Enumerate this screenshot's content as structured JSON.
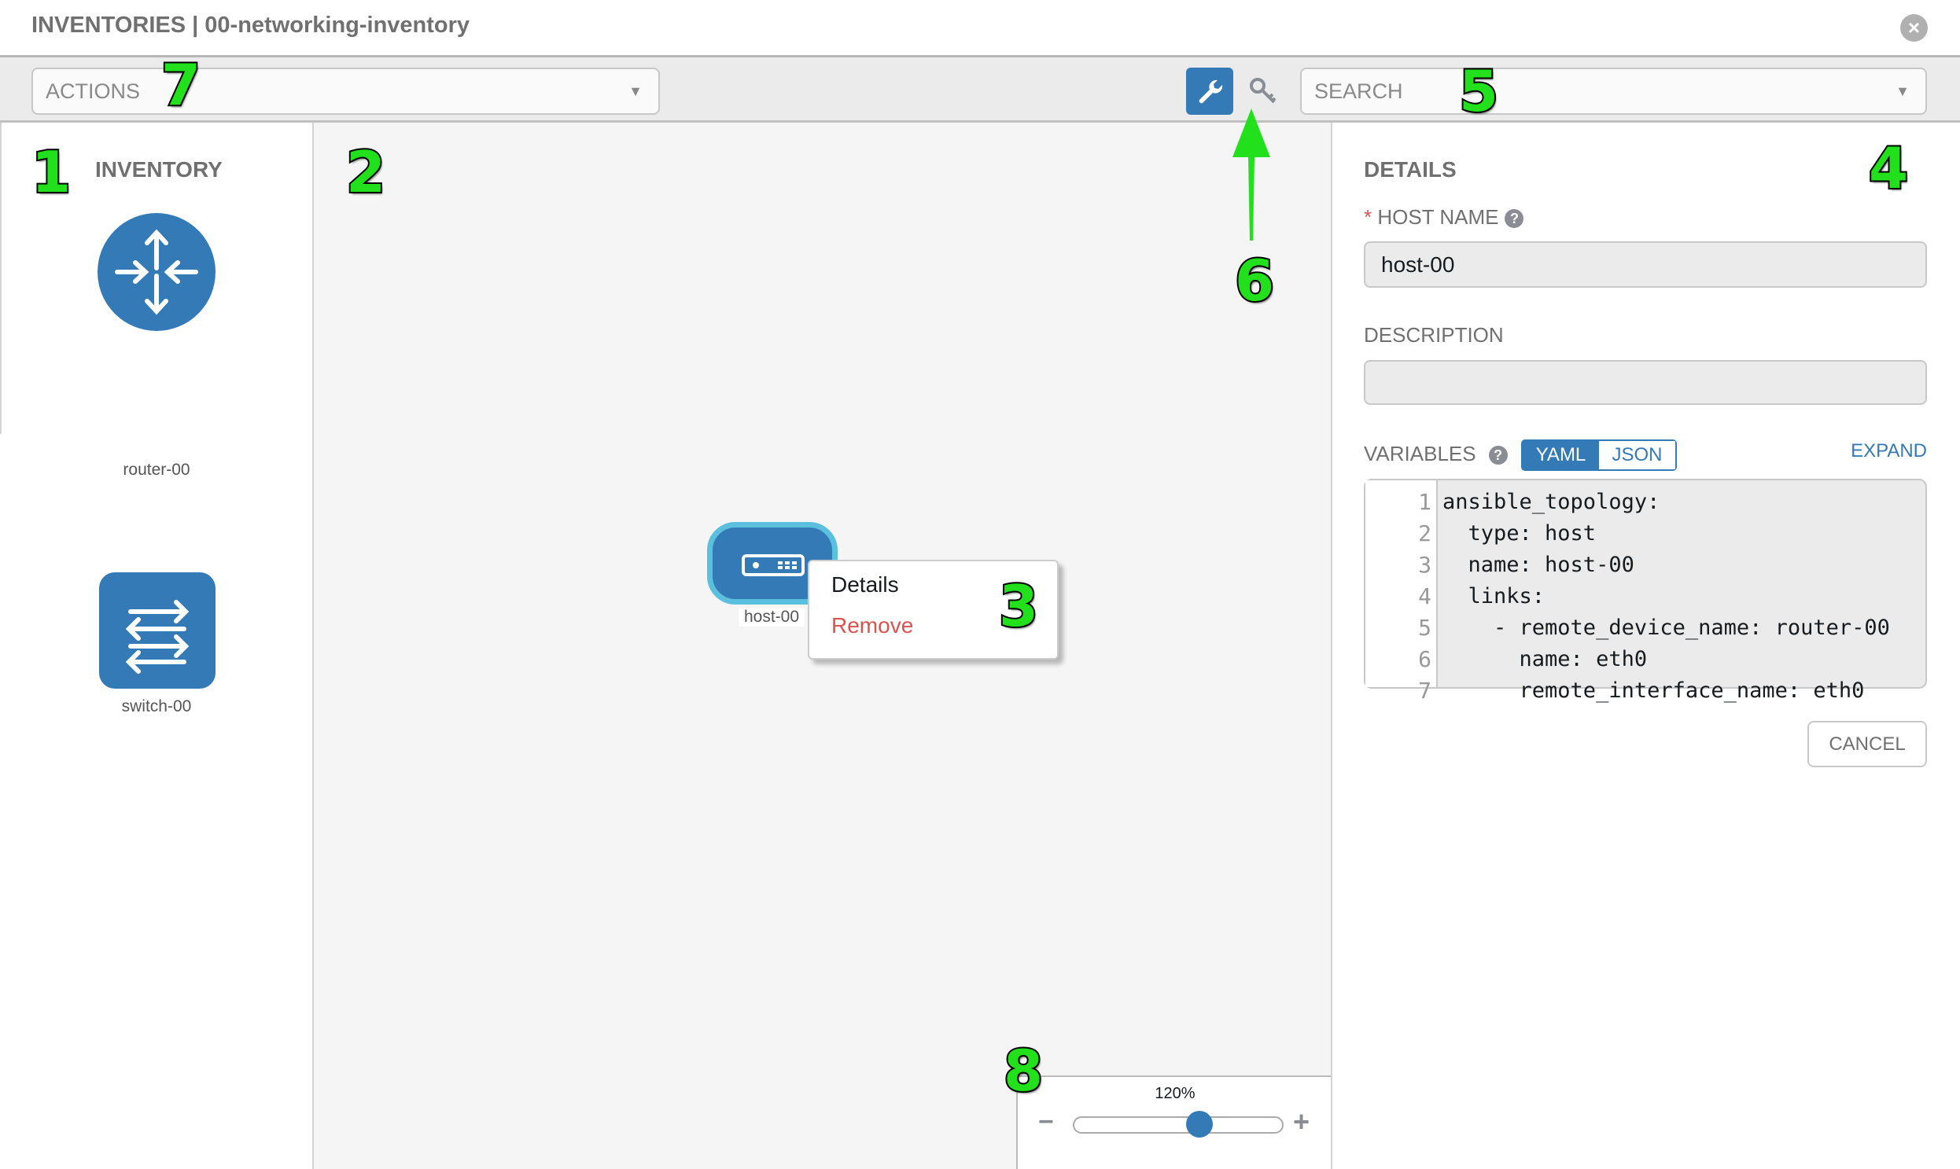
{
  "header": {
    "title": "INVENTORIES | 00-networking-inventory",
    "close_icon": "close-circle-icon"
  },
  "toolbar": {
    "actions_placeholder": "ACTIONS",
    "search_placeholder": "SEARCH",
    "mode_buttons": [
      {
        "icon": "wrench-icon",
        "active": true
      },
      {
        "icon": "key-icon",
        "active": false
      }
    ]
  },
  "inventory": {
    "title": "INVENTORY",
    "items": [
      {
        "label": "router-00",
        "icon": "router-icon"
      },
      {
        "label": "switch-00",
        "icon": "switch-icon"
      }
    ]
  },
  "canvas": {
    "node": {
      "label": "host-00",
      "icon": "host-icon"
    },
    "context_menu": {
      "details": "Details",
      "remove": "Remove"
    },
    "zoom": {
      "label": "120%",
      "value_percent": 120,
      "slider_fraction": 0.6
    }
  },
  "details": {
    "title": "DETAILS",
    "host_name_label": "HOST NAME",
    "required_mark": "*",
    "host_name_value": "host-00",
    "description_label": "DESCRIPTION",
    "description_value": "",
    "variables_label": "VARIABLES",
    "yaml": "YAML",
    "json": "JSON",
    "expand": "EXPAND",
    "cancel": "CANCEL",
    "code_lines": [
      "ansible_topology:",
      "  type: host",
      "  name: host-00",
      "  links:",
      "    - remote_device_name: router-00",
      "      name: eth0",
      "      remote_interface_name: eth0"
    ],
    "line_numbers": [
      "1",
      "2",
      "3",
      "4",
      "5",
      "6",
      "7"
    ]
  },
  "annotations": [
    "1",
    "2",
    "3",
    "4",
    "5",
    "6",
    "7",
    "8"
  ],
  "colors": {
    "accent": "#337ab7",
    "danger": "#d9534f",
    "annotation": "#22e01c"
  }
}
